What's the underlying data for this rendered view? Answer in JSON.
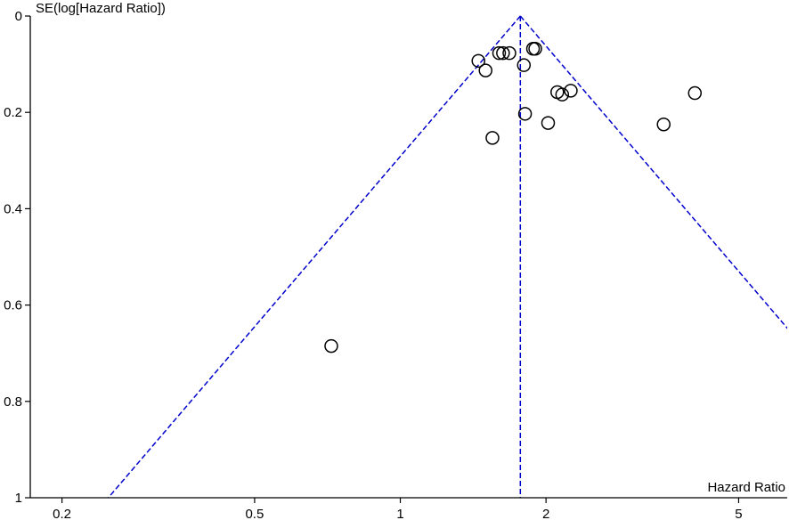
{
  "chart_data": {
    "type": "scatter",
    "title": "",
    "xlabel": "Hazard Ratio",
    "ylabel": "SE(log[Hazard Ratio])",
    "x_scale": "log",
    "xlim": [
      0.172,
      6.3
    ],
    "ylim": [
      0,
      1
    ],
    "y_inverted": true,
    "x_ticks": [
      0.2,
      0.5,
      1,
      2,
      5
    ],
    "x_tick_labels": [
      "0.2",
      "0.5",
      "1",
      "2",
      "5"
    ],
    "y_ticks": [
      0,
      0.2,
      0.4,
      0.6,
      0.8,
      1
    ],
    "y_tick_labels": [
      "0",
      "0.2",
      "0.4",
      "0.6",
      "0.8",
      "1"
    ],
    "pooled_estimate": 1.77,
    "funnel_limits": "pooled ± 1.96 × SE",
    "colors": {
      "funnel_lines": "#0000cc",
      "markers": "#000000",
      "axes": "#000000"
    },
    "grid": false,
    "points": [
      {
        "x": 1.45,
        "y": 0.093
      },
      {
        "x": 1.5,
        "y": 0.113
      },
      {
        "x": 1.6,
        "y": 0.077
      },
      {
        "x": 1.63,
        "y": 0.077
      },
      {
        "x": 1.68,
        "y": 0.077
      },
      {
        "x": 1.88,
        "y": 0.068
      },
      {
        "x": 1.9,
        "y": 0.068
      },
      {
        "x": 1.8,
        "y": 0.102
      },
      {
        "x": 1.81,
        "y": 0.203
      },
      {
        "x": 1.55,
        "y": 0.253
      },
      {
        "x": 2.02,
        "y": 0.222
      },
      {
        "x": 2.11,
        "y": 0.158
      },
      {
        "x": 2.16,
        "y": 0.163
      },
      {
        "x": 2.25,
        "y": 0.155
      },
      {
        "x": 3.5,
        "y": 0.225
      },
      {
        "x": 4.06,
        "y": 0.16
      },
      {
        "x": 0.72,
        "y": 0.685
      }
    ]
  }
}
